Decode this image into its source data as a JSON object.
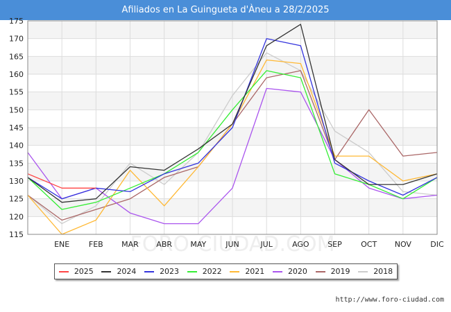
{
  "chart_data": {
    "type": "line",
    "title": "Afiliados en La Guingueta d'Àneu a 28/2/2025",
    "categories": [
      "",
      "ENE",
      "FEB",
      "MAR",
      "ABR",
      "MAY",
      "JUN",
      "JUL",
      "AGO",
      "SEP",
      "OCT",
      "NOV",
      "DIC"
    ],
    "yticks": [
      115,
      120,
      125,
      130,
      135,
      140,
      145,
      150,
      155,
      160,
      165,
      170,
      175
    ],
    "ylim": [
      115,
      175
    ],
    "grid": true,
    "legend_position": "bottom",
    "series": [
      {
        "name": "2025",
        "color": "#ff4444",
        "values": [
          132,
          128,
          128,
          null,
          null,
          null,
          null,
          null,
          null,
          null,
          null,
          null,
          null
        ]
      },
      {
        "name": "2024",
        "color": "#333333",
        "values": [
          131,
          124,
          125,
          134,
          133,
          139,
          146,
          168,
          174,
          136,
          129,
          129,
          132
        ]
      },
      {
        "name": "2023",
        "color": "#3333dd",
        "values": [
          131,
          125,
          128,
          127,
          132,
          135,
          145,
          170,
          168,
          135,
          130,
          126,
          131
        ]
      },
      {
        "name": "2022",
        "color": "#33ee33",
        "values": [
          131,
          122,
          124,
          128,
          132,
          138,
          150,
          161,
          159,
          132,
          129,
          125,
          131
        ]
      },
      {
        "name": "2021",
        "color": "#ffb833",
        "values": [
          126,
          115,
          119,
          133,
          123,
          134,
          146,
          164,
          163,
          137,
          137,
          130,
          132
        ]
      },
      {
        "name": "2020",
        "color": "#aa55ee",
        "values": [
          138,
          125,
          128,
          121,
          118,
          118,
          128,
          156,
          155,
          136,
          128,
          125,
          126
        ]
      },
      {
        "name": "2019",
        "color": "#aa6666",
        "values": [
          126,
          119,
          122,
          125,
          131,
          134,
          146,
          159,
          161,
          136,
          150,
          137,
          138
        ]
      },
      {
        "name": "2018",
        "color": "#cccccc",
        "values": [
          126,
          118,
          123,
          135,
          129,
          138,
          154,
          166,
          161,
          144,
          138,
          127,
          126
        ]
      }
    ]
  },
  "legend_items": [
    {
      "label": "2025",
      "color": "#ff4444"
    },
    {
      "label": "2024",
      "color": "#333333"
    },
    {
      "label": "2023",
      "color": "#3333dd"
    },
    {
      "label": "2022",
      "color": "#33ee33"
    },
    {
      "label": "2021",
      "color": "#ffb833"
    },
    {
      "label": "2020",
      "color": "#aa55ee"
    },
    {
      "label": "2019",
      "color": "#aa6666"
    },
    {
      "label": "2018",
      "color": "#cccccc"
    }
  ],
  "watermark": "FORO-CIUDAD.COM",
  "source_url": "http://www.foro-ciudad.com"
}
